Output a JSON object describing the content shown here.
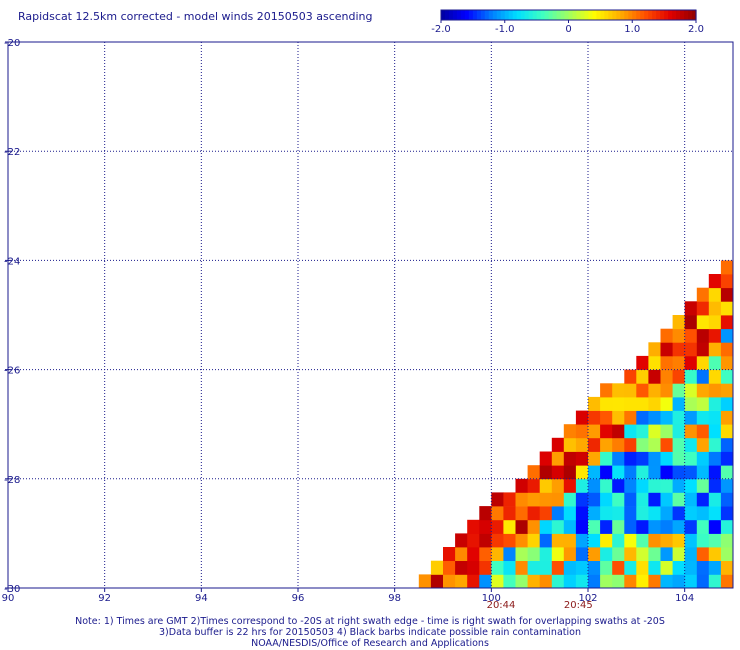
{
  "chart_data": {
    "type": "heatmap",
    "title": "Rapidscat 12.5km corrected - model winds 20150503 ascending",
    "xlim": [
      90,
      105
    ],
    "ylim": [
      -30,
      -20
    ],
    "x_ticks": [
      "90",
      "92",
      "94",
      "96",
      "98",
      "100",
      "102",
      "104"
    ],
    "y_ticks": [
      "-20",
      "-22",
      "-24",
      "-26",
      "-28",
      "-30"
    ],
    "grid": true,
    "colorbar": {
      "range": [
        -2.0,
        2.0
      ],
      "tick_labels": [
        "-2.0",
        "-1.0",
        "0",
        "1.0",
        "2.0"
      ],
      "tick_values": [
        -2.0,
        -1.0,
        0,
        1.0,
        2.0
      ],
      "colors": [
        "#0000a0",
        "#0000ff",
        "#0080ff",
        "#00e0ff",
        "#40ffc0",
        "#a0ff60",
        "#ffff00",
        "#ffb000",
        "#ff5000",
        "#e00000",
        "#900000"
      ]
    },
    "swath_edge": {
      "lon": [
        98.3,
        105.0
      ],
      "lat": [
        -30.0,
        -24.0
      ]
    },
    "cell_size_deg": 0.25,
    "time_labels": [
      {
        "text": "20:44",
        "lon": 100.2
      },
      {
        "text": "20:45",
        "lon": 101.8
      }
    ],
    "value_pattern": {
      "dark_red_band_near_edge": 1.9,
      "central_blue_region_lat": [
        -29.2,
        -27.6
      ],
      "central_blue_value": -1.6
    }
  },
  "notes": [
    "Note: 1) Times are GMT 2)Times correspond to -20S at right swath edge - time is right swath for overlapping swaths at -20S",
    "3)Data buffer is 22 hrs for 20150503 4) Black barbs indicate possible rain contamination",
    "NOAA/NESDIS/Office of Research and Applications"
  ]
}
